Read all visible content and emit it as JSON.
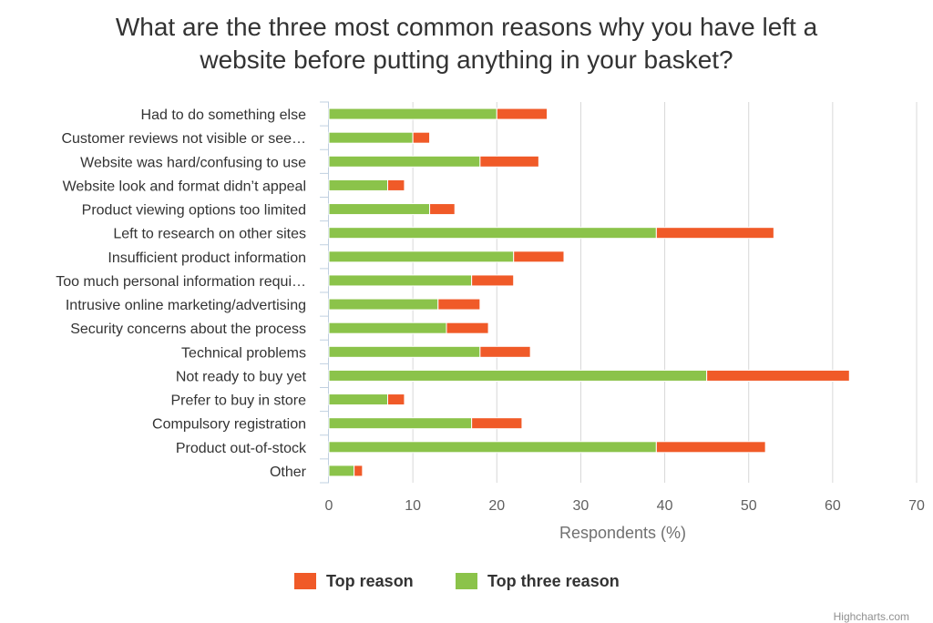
{
  "chart_data": {
    "type": "bar",
    "orientation": "horizontal",
    "stacked": true,
    "title": "What are the three most common reasons why you have left a website before putting anything in your basket?",
    "title_lines": [
      "What are the three most common reasons why you have left a",
      "website before putting anything in your basket?"
    ],
    "xlabel": "Respondents (%)",
    "xlim": [
      0,
      70
    ],
    "xticks": [
      0,
      10,
      20,
      30,
      40,
      50,
      60,
      70
    ],
    "grid": true,
    "legend_position": "bottom-center",
    "categories": [
      "Had to do something else",
      "Customer reviews not visible or see…",
      "Website was hard/confusing to use",
      "Website look and format didn’t appeal",
      "Product viewing options too limited",
      "Left to research on other sites",
      "Insufficient product information",
      "Too much personal information requi…",
      "Intrusive online marketing/advertising",
      "Security concerns about the process",
      "Technical problems",
      "Not ready to buy yet",
      "Prefer to buy in store",
      "Compulsory registration",
      "Product out-of-stock",
      "Other"
    ],
    "series": [
      {
        "name": "Top reason",
        "color": "#f05a28",
        "values": [
          6,
          2,
          7,
          2,
          3,
          14,
          6,
          5,
          5,
          5,
          6,
          17,
          2,
          6,
          13,
          1
        ]
      },
      {
        "name": "Top three reason",
        "color": "#8bc34a",
        "values": [
          20,
          10,
          18,
          7,
          12,
          39,
          22,
          17,
          13,
          14,
          18,
          45,
          7,
          17,
          39,
          3
        ]
      }
    ],
    "legend_order": [
      "Top reason",
      "Top three reason"
    ]
  },
  "credits": "Highcharts.com"
}
